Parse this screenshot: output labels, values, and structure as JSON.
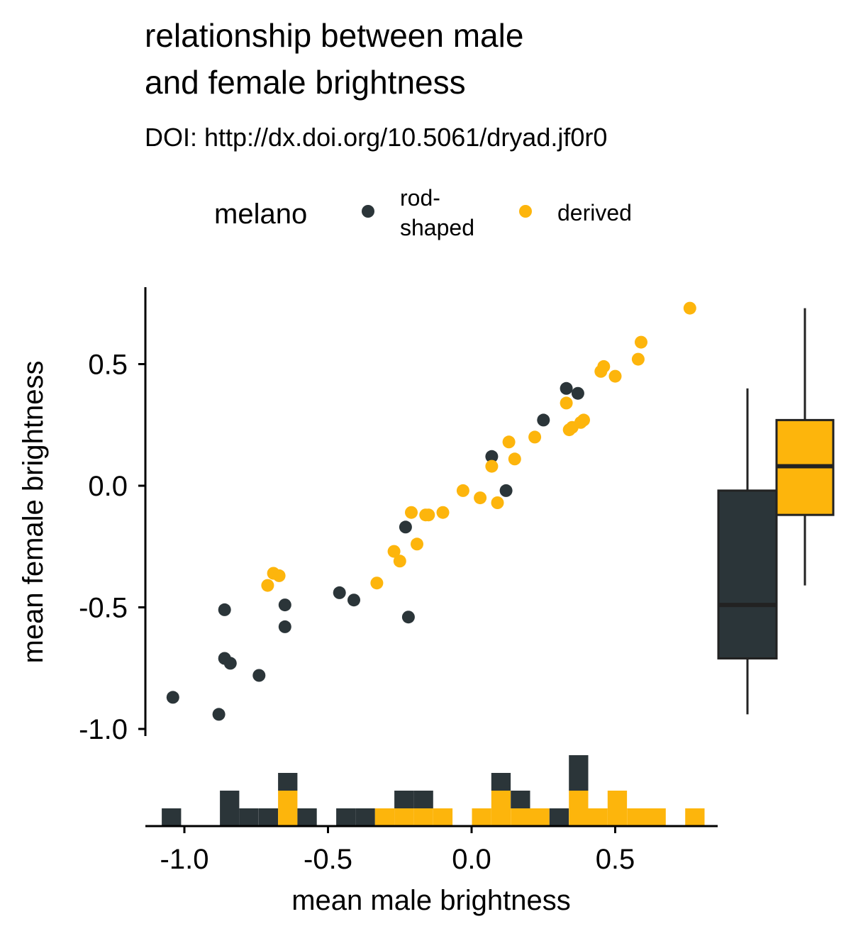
{
  "chart_data": {
    "type": "scatter",
    "title_lines": [
      "relationship between male",
      "and female brightness"
    ],
    "subtitle": "DOI: http://dx.doi.org/10.5061/dryad.jf0r0",
    "xlabel": "mean male brightness",
    "ylabel": "mean female brightness",
    "xlim": [
      -1.1,
      0.85
    ],
    "ylim": [
      -1.0,
      0.8
    ],
    "x_ticks": [
      -1.0,
      -0.5,
      0.0,
      0.5
    ],
    "x_tick_labels": [
      "-1.0",
      "-0.5",
      "0.0",
      "0.5"
    ],
    "y_ticks": [
      -1.0,
      -0.5,
      0.0,
      0.5
    ],
    "y_tick_labels": [
      "-1.0",
      "-0.5",
      "0.0",
      "0.5"
    ],
    "grid": false,
    "legend": {
      "position": "top",
      "title": "melano",
      "entries": [
        {
          "label_lines": [
            "rod-",
            "shaped"
          ],
          "color": "#2b3539"
        },
        {
          "label_lines": [
            "derived"
          ],
          "color": "#fdb50c"
        }
      ]
    },
    "series": [
      {
        "name": "rod-shaped",
        "color": "#2b3539",
        "points": [
          [
            -1.04,
            -0.87
          ],
          [
            -0.88,
            -0.94
          ],
          [
            -0.86,
            -0.51
          ],
          [
            -0.86,
            -0.71
          ],
          [
            -0.84,
            -0.73
          ],
          [
            -0.74,
            -0.78
          ],
          [
            -0.65,
            -0.49
          ],
          [
            -0.65,
            -0.58
          ],
          [
            -0.46,
            -0.44
          ],
          [
            -0.41,
            -0.47
          ],
          [
            -0.23,
            -0.17
          ],
          [
            -0.22,
            -0.54
          ],
          [
            0.07,
            0.12
          ],
          [
            0.12,
            -0.02
          ],
          [
            0.25,
            0.27
          ],
          [
            0.33,
            0.4
          ],
          [
            0.37,
            0.38
          ]
        ]
      },
      {
        "name": "derived",
        "color": "#fdb50c",
        "points": [
          [
            -0.71,
            -0.41
          ],
          [
            -0.69,
            -0.36
          ],
          [
            -0.67,
            -0.37
          ],
          [
            -0.33,
            -0.4
          ],
          [
            -0.27,
            -0.27
          ],
          [
            -0.25,
            -0.31
          ],
          [
            -0.21,
            -0.11
          ],
          [
            -0.19,
            -0.24
          ],
          [
            -0.16,
            -0.12
          ],
          [
            -0.15,
            -0.12
          ],
          [
            -0.1,
            -0.11
          ],
          [
            -0.03,
            -0.02
          ],
          [
            0.03,
            -0.05
          ],
          [
            0.07,
            0.08
          ],
          [
            0.09,
            -0.07
          ],
          [
            0.13,
            0.18
          ],
          [
            0.15,
            0.11
          ],
          [
            0.22,
            0.2
          ],
          [
            0.33,
            0.34
          ],
          [
            0.34,
            0.23
          ],
          [
            0.35,
            0.24
          ],
          [
            0.38,
            0.26
          ],
          [
            0.39,
            0.27
          ],
          [
            0.45,
            0.47
          ],
          [
            0.46,
            0.49
          ],
          [
            0.5,
            0.45
          ],
          [
            0.58,
            0.52
          ],
          [
            0.59,
            0.59
          ],
          [
            0.76,
            0.73
          ]
        ]
      }
    ],
    "histogram_x": {
      "bin_width": 0.0675,
      "bins": [
        {
          "x0": -1.0788,
          "rod": 1,
          "derived": 0
        },
        {
          "x0": -0.8763,
          "rod": 2,
          "derived": 0
        },
        {
          "x0": -0.8088,
          "rod": 1,
          "derived": 0
        },
        {
          "x0": -0.7413,
          "rod": 1,
          "derived": 0
        },
        {
          "x0": -0.6738,
          "rod": 1,
          "derived": 2
        },
        {
          "x0": -0.6063,
          "rod": 1,
          "derived": 0
        },
        {
          "x0": -0.4713,
          "rod": 1,
          "derived": 0
        },
        {
          "x0": -0.4038,
          "rod": 1,
          "derived": 0
        },
        {
          "x0": -0.3363,
          "rod": 0,
          "derived": 1
        },
        {
          "x0": -0.2688,
          "rod": 1,
          "derived": 1
        },
        {
          "x0": -0.2013,
          "rod": 1,
          "derived": 1
        },
        {
          "x0": -0.1338,
          "rod": 0,
          "derived": 1
        },
        {
          "x0": -0.0663,
          "rod": 0,
          "derived": 0
        },
        {
          "x0": 0.0012,
          "rod": 0,
          "derived": 1
        },
        {
          "x0": 0.0687,
          "rod": 1,
          "derived": 2
        },
        {
          "x0": 0.1362,
          "rod": 1,
          "derived": 1
        },
        {
          "x0": 0.2037,
          "rod": 0,
          "derived": 1
        },
        {
          "x0": 0.2712,
          "rod": 1,
          "derived": 0
        },
        {
          "x0": 0.3387,
          "rod": 2,
          "derived": 2
        },
        {
          "x0": 0.4062,
          "rod": 0,
          "derived": 1
        },
        {
          "x0": 0.4737,
          "rod": 0,
          "derived": 2
        },
        {
          "x0": 0.5412,
          "rod": 0,
          "derived": 1
        },
        {
          "x0": 0.6087,
          "rod": 0,
          "derived": 1
        },
        {
          "x0": 0.7437,
          "rod": 0,
          "derived": 1
        }
      ]
    },
    "boxplot_y": [
      {
        "group": "rod-shaped",
        "color": "#2b3539",
        "min": -0.94,
        "q1": -0.71,
        "median": -0.49,
        "q3": -0.02,
        "max": 0.4
      },
      {
        "group": "derived",
        "color": "#fdb50c",
        "min": -0.41,
        "q1": -0.12,
        "median": 0.08,
        "q3": 0.27,
        "max": 0.73
      }
    ]
  }
}
